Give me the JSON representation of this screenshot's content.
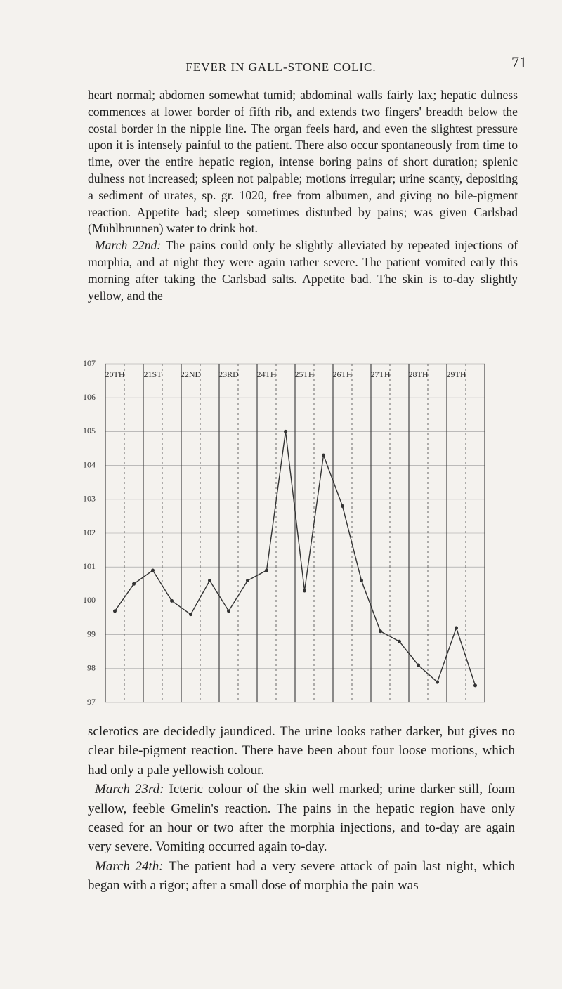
{
  "header": {
    "title": "FEVER IN GALL-STONE COLIC.",
    "page_number": "71"
  },
  "top_text": [
    {
      "text": "heart normal; abdomen somewhat tumid; abdominal walls fairly lax; hepatic dulness commences at lower border of fifth rib, and extends two fingers' breadth below the costal border in the nipple line. The organ feels hard, and even the slightest pressure upon it is intensely painful to the patient. There also occur spontaneously from time to time, over the entire hepatic region, intense boring pains of short duration; splenic dulness not increased; spleen not palpable; motions irregular; urine scanty, depositing a sediment of urates, sp. gr. 1020, free from albumen, and giving no bile-pigment reaction. Appetite bad; sleep sometimes disturbed by pains; was given Carlsbad (Mühlbrunnen) water to drink hot."
    },
    {
      "date": "March 22nd:",
      "text": "The pains could only be slightly alleviated by repeated injections of morphia, and at night they were again rather severe. The patient vomited early this morning after taking the Carlsbad salts. Appetite bad. The skin is to-day slightly yellow, and the"
    }
  ],
  "chart_data": {
    "type": "line",
    "categories": [
      "20TH",
      null,
      "21ST",
      null,
      "22ND",
      null,
      "23RD",
      null,
      "24TH",
      null,
      "25TH",
      null,
      "26TH",
      null,
      "27TH",
      null,
      "28TH",
      null,
      "29TH",
      null
    ],
    "values": [
      99.7,
      100.5,
      100.9,
      100.0,
      99.6,
      100.6,
      99.7,
      100.6,
      100.9,
      105.0,
      100.3,
      104.3,
      102.8,
      100.6,
      99.1,
      98.8,
      98.1,
      97.6,
      99.2,
      97.5
    ],
    "color": "#333333",
    "ylim": [
      97,
      107
    ],
    "yticks": [
      97,
      98,
      99,
      100,
      101,
      102,
      103,
      104,
      105,
      106,
      107
    ],
    "grid": true
  },
  "bottom_text": [
    {
      "text": "sclerotics are decidedly jaundiced. The urine looks rather darker, but gives no clear bile-pigment reaction. There have been about four loose motions, which had only a pale yellowish colour."
    },
    {
      "date": "March 23rd:",
      "text": "Icteric colour of the skin well marked; urine darker still, foam yellow, feeble Gmelin's reaction. The pains in the hepatic region have only ceased for an hour or two after the morphia injections, and to-day are again very severe. Vomiting occurred again to-day."
    },
    {
      "date": "March 24th:",
      "text": "The patient had a very severe attack of pain last night, which began with a rigor; after a small dose of morphia the pain was"
    }
  ]
}
